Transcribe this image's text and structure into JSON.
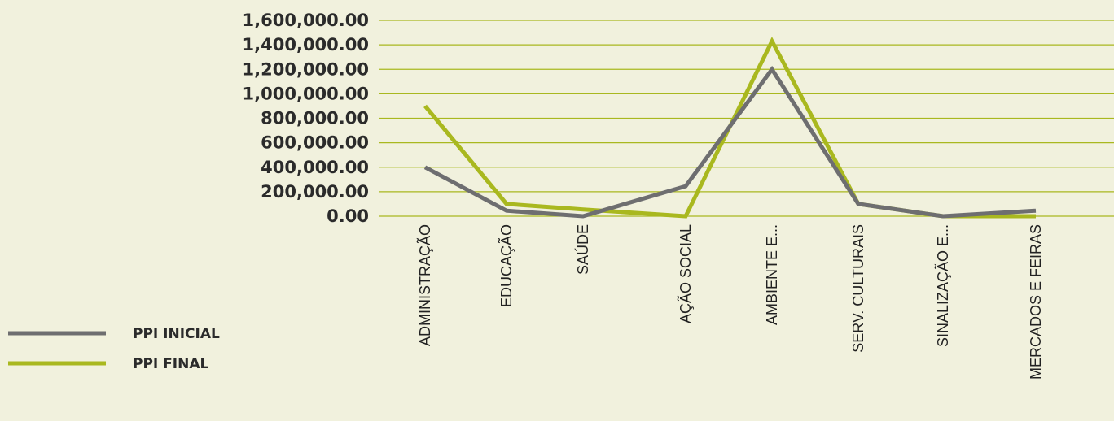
{
  "chart_data": {
    "type": "line",
    "title": "",
    "xlabel": "",
    "ylabel": "",
    "categories": [
      "ADMINISTRAÇÃO",
      "EDUCAÇÃO",
      "SAÚDE",
      "AÇÃO SOCIAL",
      "AMBIENTE E...",
      "SERV. CULTURAIS",
      "SINALIZAÇÃO E...",
      "MERCADOS E FEIRAS"
    ],
    "y_ticks": [
      "0.00",
      "200,000.00",
      "400,000.00",
      "600,000.00",
      "800,000.00",
      "1,000,000.00",
      "1,200,000.00",
      "1,400,000.00",
      "1,600,000.00"
    ],
    "ylim": [
      0,
      1600000
    ],
    "grid": true,
    "legend_position": "bottom-left",
    "series": [
      {
        "name": "PPI INICIAL",
        "color": "#6e6e70",
        "values": [
          400000,
          45000,
          0,
          245000,
          1200000,
          100000,
          0,
          45000
        ]
      },
      {
        "name": "PPI FINAL",
        "color": "#a9b81f",
        "values": [
          900000,
          100000,
          55000,
          0,
          1430000,
          100000,
          0,
          0
        ]
      }
    ],
    "gridline_color": "#a9b81f"
  }
}
